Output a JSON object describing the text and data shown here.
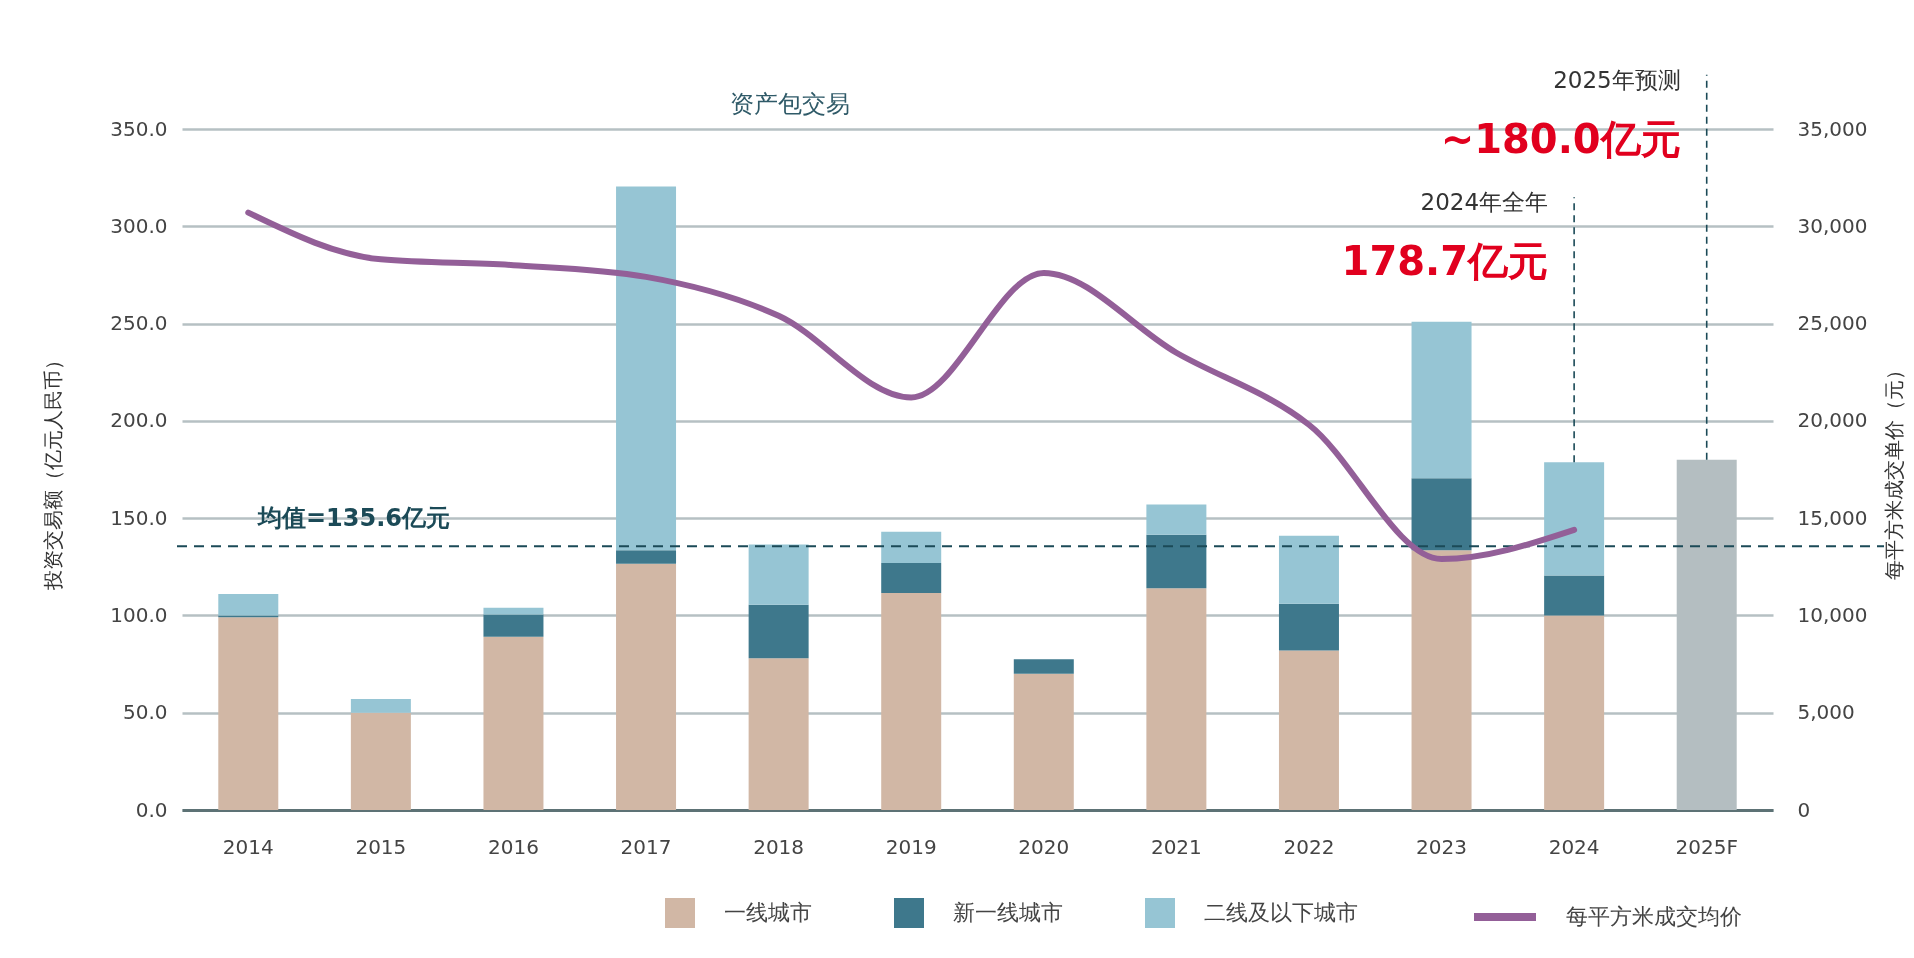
{
  "chart_data": {
    "type": "bar",
    "stacked": true,
    "ylabel": "投资交易额（亿元人民币）",
    "y2label": "每平方米成交单价（元）",
    "categories": [
      "2014",
      "2015",
      "2016",
      "2017",
      "2018",
      "2019",
      "2020",
      "2021",
      "2022",
      "2023",
      "2024",
      "2025F"
    ],
    "series": [
      {
        "name": "一线城市",
        "color": "#d1b7a5",
        "values": [
          99,
          50,
          89,
          126.5,
          78,
          111.5,
          70,
          114,
          82,
          133.5,
          100,
          null
        ]
      },
      {
        "name": "新一线城市",
        "color": "#3e788c",
        "values": [
          1,
          null,
          11.5,
          7,
          27.5,
          15.5,
          7.5,
          27.5,
          24,
          37,
          20.5,
          null
        ]
      },
      {
        "name": "二线及以下城市",
        "color": "#96c5d4",
        "values": [
          11,
          7,
          3.5,
          187,
          31,
          16,
          null,
          15.5,
          35,
          80.5,
          58.2,
          null
        ]
      },
      {
        "color": "#b4bec1",
        "values": [
          null,
          null,
          null,
          null,
          null,
          null,
          null,
          null,
          null,
          null,
          null,
          180.0
        ]
      },
      {
        "name": "每平方米成交均价",
        "type": "line",
        "axis": "y2",
        "color": "#935f98",
        "line_style": "solid",
        "values": [
          30700,
          28300,
          28000,
          27400,
          25400,
          21200,
          27600,
          23500,
          19800,
          12900,
          14400,
          null
        ]
      }
    ],
    "ylim": [
      0,
      350
    ],
    "yticks": [
      {
        "value": 0,
        "label": "0.0"
      },
      {
        "value": 50,
        "label": "50.0"
      },
      {
        "value": 100,
        "label": "100.0"
      },
      {
        "value": 150,
        "label": "150.0"
      },
      {
        "value": 200,
        "label": "200.0"
      },
      {
        "value": 250,
        "label": "250.0"
      },
      {
        "value": 300,
        "label": "300.0"
      },
      {
        "value": 350,
        "label": "350.0"
      }
    ],
    "y2lim": [
      0,
      35000
    ],
    "y2ticks": [
      0,
      {
        "value": 5000,
        "label": "5,000"
      },
      {
        "value": 10000,
        "label": "10,000"
      },
      {
        "value": 15000,
        "label": "15,000"
      },
      {
        "value": 20000,
        "label": "20,000"
      },
      {
        "value": 25000,
        "label": "25,000"
      },
      {
        "value": 30000,
        "label": "30,000"
      },
      {
        "value": 35000,
        "label": "35,000"
      }
    ],
    "grid": "y",
    "legend": "bottom",
    "ref_lines": [
      {
        "axis": "y",
        "value": 135.6,
        "label": "均值=135.6亿元",
        "color": "#1b4a57",
        "line_style": "dashed"
      }
    ],
    "annotations": [
      "资产包交易",
      {
        "text": "2024年全年",
        "x": "2024",
        "y": 178.7
      },
      {
        "text": "178.7亿元",
        "x": "2024",
        "y": 178.7
      },
      {
        "text": "2025年预测",
        "x": "2025F",
        "y": 180.0
      },
      {
        "text": "~180.0亿元",
        "x": "2025F",
        "y": 180.0
      }
    ]
  }
}
